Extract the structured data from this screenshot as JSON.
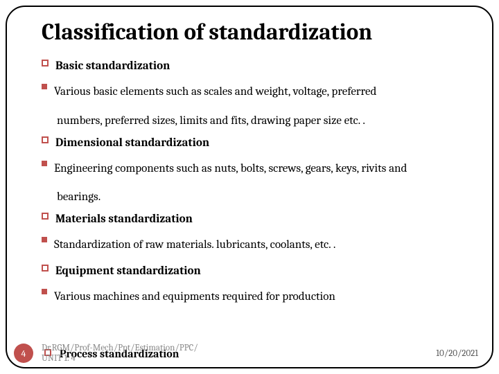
{
  "title": "Classification of standardization",
  "items": [
    {
      "level": 1,
      "bullet": "outline",
      "text": "Basic standardization"
    },
    {
      "level": 2,
      "bullet": "filled",
      "text": "Various basic elements such as scales and weight, voltage, preferred"
    },
    {
      "level": 0,
      "bullet": "none",
      "text": "numbers, preferred sizes, limits and fits, drawing paper size etc. ."
    },
    {
      "level": 1,
      "bullet": "outline",
      "text": "Dimensional standardization"
    },
    {
      "level": 2,
      "bullet": "filled",
      "text": "Engineering components such as nuts, bolts, screws, gears, keys, rivits and"
    },
    {
      "level": 0,
      "bullet": "none",
      "text": "bearings."
    },
    {
      "level": 1,
      "bullet": "outline",
      "text": "Materials standardization"
    },
    {
      "level": 2,
      "bullet": "filled",
      "text": "Standardization of raw materials. lubricants, coolants, etc. ."
    },
    {
      "level": 1,
      "bullet": "outline",
      "text": "Equipment  standardization"
    },
    {
      "level": 2,
      "bullet": "filled",
      "text": "Various machines and equipments required for production"
    }
  ],
  "footer": {
    "page_number": "4",
    "source_line1": "Dr.RGM/Prof-Mech/Ppt/Estimation/PPC/",
    "source_line2": "UNIT 1. 4",
    "overlay_text": "Process standardization",
    "date": "10/20/2021"
  },
  "colors": {
    "accent": "#c0504d",
    "text": "#000000",
    "footer_text": "#888888",
    "date_text": "#555555",
    "background": "#ffffff"
  }
}
